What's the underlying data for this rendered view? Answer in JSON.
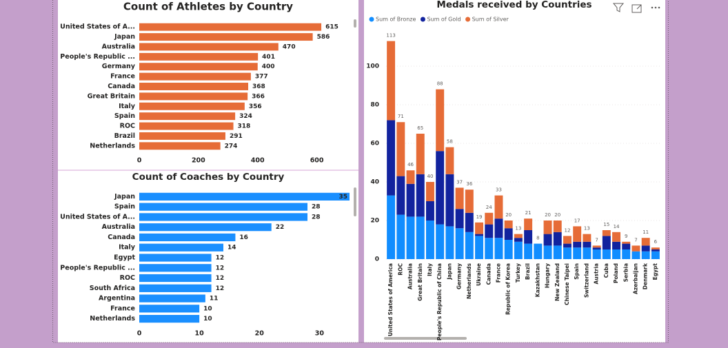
{
  "chart_data": [
    {
      "type": "barh",
      "title": "Count of Athletes by Country",
      "categories": [
        "United States of A...",
        "Japan",
        "Australia",
        "People's Republic ...",
        "Germany",
        "France",
        "Canada",
        "Great Britain",
        "Italy",
        "Spain",
        "ROC",
        "Brazil",
        "Netherlands"
      ],
      "values": [
        615,
        586,
        470,
        401,
        400,
        377,
        368,
        366,
        356,
        324,
        318,
        291,
        274
      ],
      "color": "#e66c37",
      "xlim": [
        0,
        715
      ],
      "xticks": [
        0,
        200,
        400,
        600
      ],
      "grid": false
    },
    {
      "type": "barh",
      "title": "Count of Coaches by Country",
      "categories": [
        "Japan",
        "Spain",
        "United States of A...",
        "Australia",
        "Canada",
        "Italy",
        "Egypt",
        "People's Republic ...",
        "ROC",
        "South Africa",
        "Argentina",
        "France",
        "Netherlands"
      ],
      "values": [
        35,
        28,
        28,
        22,
        16,
        14,
        12,
        12,
        12,
        12,
        11,
        10,
        10
      ],
      "color": "#1a8fff",
      "xlim": [
        0,
        35
      ],
      "xticks": [
        0,
        10,
        20,
        30
      ],
      "grid": false
    },
    {
      "type": "stacked",
      "title": "Medals received by Countries",
      "categories": [
        "United States of America",
        "ROC",
        "Australia",
        "Great Britain",
        "Italy",
        "People's Republic of China",
        "Japan",
        "Germany",
        "Netherlands",
        "Ukraine",
        "Canada",
        "France",
        "Republic of Korea",
        "Turkey",
        "Brazil",
        "Kazakhstan",
        "Hungary",
        "New Zealand",
        "Chinese Taipei",
        "Spain",
        "Switzerland",
        "Austria",
        "Cuba",
        "Poland",
        "Serbia",
        "Azerbaijan",
        "Denmark",
        "Egypt"
      ],
      "series": [
        {
          "name": "Sum of Bronze",
          "color": "#118dff",
          "values": [
            33,
            23,
            22,
            22,
            20,
            18,
            17,
            16,
            14,
            12,
            11,
            11,
            10,
            9,
            8,
            8,
            7,
            7,
            6,
            6,
            6,
            5,
            5,
            5,
            5,
            4,
            4,
            4
          ]
        },
        {
          "name": "Sum of Gold",
          "color": "#12239e",
          "values": [
            39,
            20,
            17,
            22,
            10,
            38,
            27,
            10,
            10,
            1,
            7,
            10,
            6,
            2,
            7,
            0,
            6,
            7,
            2,
            3,
            3,
            1,
            7,
            4,
            3,
            0,
            3,
            1
          ]
        },
        {
          "name": "Sum of Silver",
          "color": "#e66c37",
          "values": [
            41,
            28,
            7,
            21,
            10,
            32,
            14,
            11,
            12,
            6,
            6,
            12,
            4,
            2,
            6,
            0,
            7,
            6,
            4,
            8,
            4,
            1,
            3,
            5,
            1,
            3,
            4,
            1
          ]
        }
      ],
      "total_labels": [
        113,
        71,
        46,
        65,
        40,
        88,
        58,
        37,
        36,
        19,
        24,
        33,
        20,
        13,
        21,
        8,
        20,
        20,
        12,
        17,
        13,
        7,
        15,
        14,
        9,
        7,
        11,
        6
      ],
      "ylim": [
        0,
        120
      ],
      "yticks": [
        0,
        20,
        40,
        60,
        80,
        100
      ],
      "grid": true,
      "legend": "top-left"
    }
  ]
}
